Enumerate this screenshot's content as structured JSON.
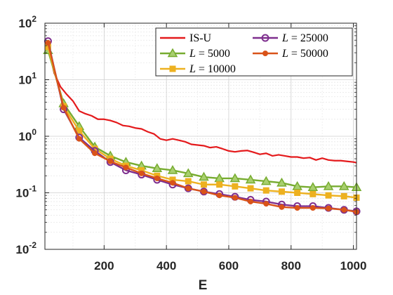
{
  "chart_data": {
    "type": "line",
    "title": "",
    "xlabel": "E",
    "ylabel": "",
    "xlim": [
      10,
      1010
    ],
    "ylim": [
      0.01,
      100
    ],
    "yscale": "log",
    "grid": true,
    "legend_position": "top-right",
    "x_ticks": [
      {
        "value": 200,
        "label": "200"
      },
      {
        "value": 400,
        "label": "400"
      },
      {
        "value": 600,
        "label": "600"
      },
      {
        "value": 800,
        "label": "800"
      },
      {
        "value": 1000,
        "label": "1000"
      }
    ],
    "y_ticks": [
      {
        "value": 0.01,
        "base": "10",
        "exp": "-2"
      },
      {
        "value": 0.1,
        "base": "10",
        "exp": "-1"
      },
      {
        "value": 1,
        "base": "10",
        "exp": "0"
      },
      {
        "value": 10,
        "base": "10",
        "exp": "1"
      },
      {
        "value": 100,
        "base": "10",
        "exp": "2"
      }
    ],
    "series": [
      {
        "name": "IS-U",
        "legend_label": "IS-U",
        "color": "#e41a1c",
        "marker": "none",
        "x": [
          20,
          40,
          60,
          80,
          100,
          120,
          140,
          160,
          180,
          200,
          220,
          240,
          260,
          280,
          300,
          320,
          340,
          360,
          380,
          400,
          420,
          440,
          460,
          480,
          500,
          520,
          540,
          560,
          580,
          600,
          620,
          640,
          660,
          680,
          700,
          720,
          740,
          760,
          780,
          800,
          820,
          840,
          860,
          880,
          900,
          920,
          940,
          960,
          980,
          1000,
          1010
        ],
        "values": [
          40,
          13,
          7.5,
          5.5,
          4.2,
          2.8,
          2.5,
          2.3,
          2.0,
          2.0,
          1.9,
          1.75,
          1.55,
          1.5,
          1.4,
          1.35,
          1.2,
          1.1,
          0.9,
          0.85,
          0.9,
          0.85,
          0.8,
          0.72,
          0.7,
          0.68,
          0.63,
          0.65,
          0.6,
          0.55,
          0.53,
          0.55,
          0.56,
          0.52,
          0.48,
          0.5,
          0.45,
          0.47,
          0.45,
          0.43,
          0.43,
          0.41,
          0.42,
          0.38,
          0.41,
          0.38,
          0.37,
          0.37,
          0.36,
          0.35,
          0.34
        ]
      },
      {
        "name": "L = 5000",
        "legend_label": "L = 5000",
        "color": "#77ac30",
        "marker": "triangle",
        "x": [
          20,
          70,
          120,
          170,
          220,
          270,
          320,
          370,
          420,
          470,
          520,
          570,
          620,
          670,
          720,
          770,
          820,
          870,
          920,
          970,
          1010
        ],
        "values": [
          33,
          3.8,
          1.5,
          0.65,
          0.45,
          0.35,
          0.3,
          0.27,
          0.25,
          0.22,
          0.19,
          0.18,
          0.18,
          0.17,
          0.16,
          0.15,
          0.13,
          0.125,
          0.13,
          0.13,
          0.125
        ]
      },
      {
        "name": "L = 10000",
        "legend_label": "L = 10000",
        "color": "#edb120",
        "marker": "square",
        "x": [
          20,
          70,
          120,
          170,
          220,
          270,
          320,
          370,
          420,
          470,
          520,
          570,
          620,
          670,
          720,
          770,
          820,
          870,
          920,
          970,
          1010
        ],
        "values": [
          38,
          3.4,
          1.25,
          0.6,
          0.4,
          0.3,
          0.25,
          0.2,
          0.17,
          0.16,
          0.14,
          0.14,
          0.13,
          0.12,
          0.11,
          0.105,
          0.1,
          0.095,
          0.09,
          0.087,
          0.082
        ]
      },
      {
        "name": "L = 25000",
        "legend_label": "L = 25000",
        "color": "#7e2f8e",
        "marker": "circle-open",
        "x": [
          20,
          70,
          120,
          170,
          220,
          270,
          320,
          370,
          420,
          470,
          520,
          570,
          620,
          670,
          720,
          770,
          820,
          870,
          920,
          970,
          1010
        ],
        "values": [
          48,
          3.0,
          0.95,
          0.55,
          0.35,
          0.25,
          0.21,
          0.17,
          0.14,
          0.12,
          0.105,
          0.095,
          0.085,
          0.075,
          0.07,
          0.062,
          0.058,
          0.058,
          0.054,
          0.05,
          0.047
        ]
      },
      {
        "name": "L = 50000",
        "legend_label": "L = 50000",
        "color": "#d95319",
        "marker": "circle-filled",
        "x": [
          20,
          70,
          120,
          170,
          220,
          270,
          320,
          370,
          420,
          470,
          520,
          570,
          620,
          670,
          720,
          770,
          820,
          870,
          920,
          970,
          1010
        ],
        "values": [
          45,
          3.2,
          0.9,
          0.5,
          0.36,
          0.28,
          0.22,
          0.18,
          0.15,
          0.12,
          0.105,
          0.09,
          0.082,
          0.07,
          0.064,
          0.056,
          0.054,
          0.054,
          0.053,
          0.05,
          0.046
        ]
      }
    ]
  }
}
